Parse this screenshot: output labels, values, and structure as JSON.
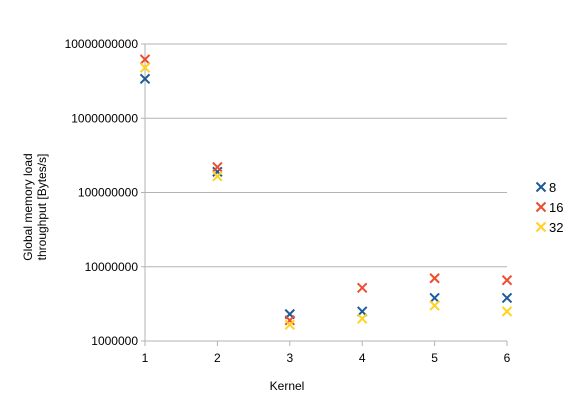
{
  "chart_data": {
    "type": "scatter",
    "xlabel": "Kernel",
    "ylabel": [
      "Global memory load",
      "throughput [Bytes/s]"
    ],
    "yscale": "log",
    "xlim": [
      1,
      6
    ],
    "ylim": [
      1000000,
      10000000000
    ],
    "x_ticks": [
      "1",
      "2",
      "3",
      "4",
      "5",
      "6"
    ],
    "y_ticks": [
      "10000000000",
      "1000000000",
      "100000000",
      "10000000",
      "1000000"
    ],
    "grid": "horizontal",
    "legend_position": "right",
    "series": [
      {
        "name": "8",
        "color": "#1f5b96",
        "x": [
          1,
          2,
          3,
          4,
          5,
          6
        ],
        "values": [
          3400000000,
          190000000,
          2300000,
          2500000,
          3800000,
          3800000
        ]
      },
      {
        "name": "16",
        "color": "#ee4d2e",
        "x": [
          1,
          2,
          3,
          4,
          5,
          6
        ],
        "values": [
          6200000000,
          220000000,
          1900000,
          5200000,
          7000000,
          6600000
        ]
      },
      {
        "name": "32",
        "color": "#ffd320",
        "x": [
          1,
          2,
          3,
          4,
          5,
          6
        ],
        "values": [
          4800000000,
          165000000,
          1650000,
          2000000,
          3000000,
          2500000
        ]
      }
    ]
  }
}
